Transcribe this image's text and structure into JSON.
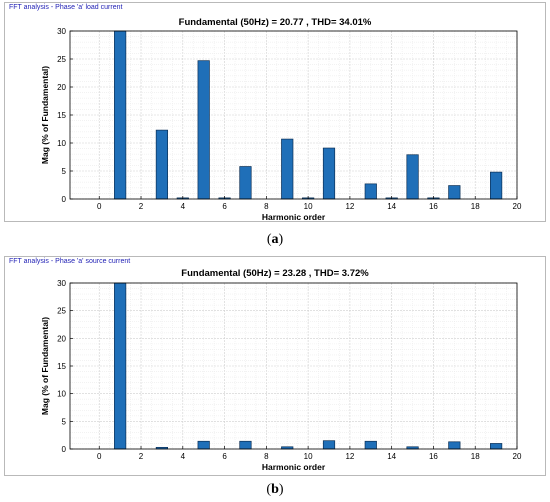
{
  "chart_data": [
    {
      "type": "bar",
      "window_title": "FFT analysis - Phase 'a' load current",
      "title": "Fundamental (50Hz) = 20.77 , THD= 34.01%",
      "xlabel": "Harmonic order",
      "ylabel": "Mag (% of Fundamental)",
      "xlim": [
        -1.4,
        20
      ],
      "ylim": [
        0,
        30
      ],
      "xticks": [
        0,
        2,
        4,
        6,
        8,
        10,
        12,
        14,
        16,
        18,
        20
      ],
      "yticks": [
        0,
        5,
        10,
        15,
        20,
        25,
        30
      ],
      "grid": true,
      "bar_color": "#1f6fb8",
      "x": [
        1,
        3,
        4,
        5,
        6,
        7,
        9,
        10,
        11,
        13,
        14,
        15,
        16,
        17,
        19
      ],
      "values": [
        30.0,
        12.3,
        0.2,
        24.7,
        0.2,
        5.8,
        10.7,
        0.2,
        9.1,
        2.7,
        0.2,
        7.9,
        0.2,
        2.4,
        4.8
      ],
      "sublabel": "a"
    },
    {
      "type": "bar",
      "window_title": "FFT analysis - Phase 'a' source current",
      "title": "Fundamental (50Hz) = 23.28 , THD= 3.72%",
      "xlabel": "Harmonic order",
      "ylabel": "Mag (% of Fundamental)",
      "xlim": [
        -1.4,
        20
      ],
      "ylim": [
        0,
        30
      ],
      "xticks": [
        0,
        2,
        4,
        6,
        8,
        10,
        12,
        14,
        16,
        18,
        20
      ],
      "yticks": [
        0,
        5,
        10,
        15,
        20,
        25,
        30
      ],
      "grid": true,
      "bar_color": "#1f6fb8",
      "x": [
        1,
        3,
        5,
        7,
        9,
        11,
        13,
        15,
        17,
        19
      ],
      "values": [
        30.0,
        0.3,
        1.4,
        1.4,
        0.4,
        1.5,
        1.4,
        0.4,
        1.3,
        1.0
      ],
      "sublabel": "b"
    }
  ]
}
